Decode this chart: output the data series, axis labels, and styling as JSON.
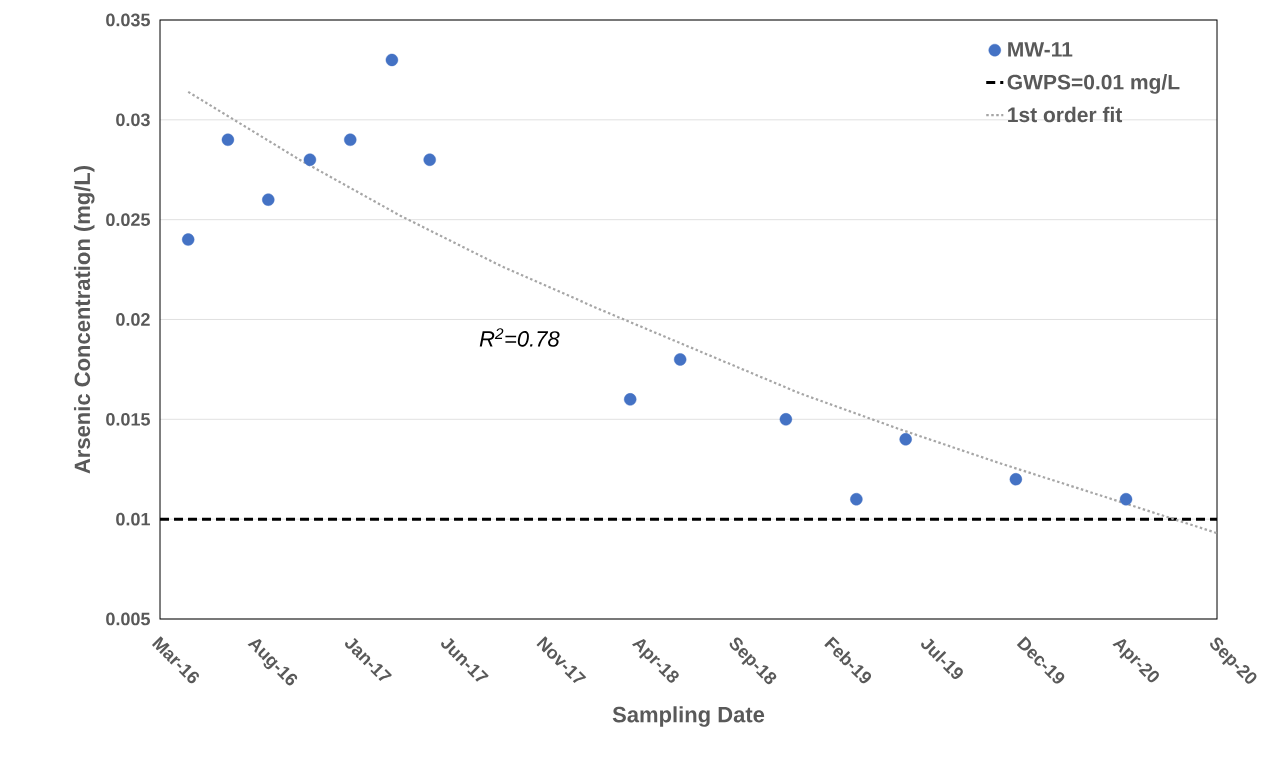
{
  "chart_data": {
    "type": "scatter",
    "xlabel": "Sampling Date",
    "ylabel": "Arsenic Concentration (mg/L)",
    "xlim": [
      "2016-03-21",
      "2020-09-26"
    ],
    "xticks": [
      {
        "value": "2016-03-21",
        "label": "Mar-16"
      },
      {
        "value": "2016-08-18",
        "label": "Aug-16"
      },
      {
        "value": "2017-01-15",
        "label": "Jan-17"
      },
      {
        "value": "2017-06-14",
        "label": "Jun-17"
      },
      {
        "value": "2017-11-11",
        "label": "Nov-17"
      },
      {
        "value": "2018-04-10",
        "label": "Apr-18"
      },
      {
        "value": "2018-09-07",
        "label": "Sep-18"
      },
      {
        "value": "2019-02-04",
        "label": "Feb-19"
      },
      {
        "value": "2019-07-04",
        "label": "Jul-19"
      },
      {
        "value": "2019-12-01",
        "label": "Dec-19"
      },
      {
        "value": "2020-04-29",
        "label": "Apr-20"
      },
      {
        "value": "2020-09-26",
        "label": "Sep-20"
      }
    ],
    "ylim": [
      0.005,
      0.035
    ],
    "yticks": [
      0.005,
      0.01,
      0.015,
      0.02,
      0.025,
      0.03,
      0.035
    ],
    "grid": "y",
    "legend": "top right",
    "marker": "circle",
    "series": [
      {
        "name": "MW-11",
        "color": "#4472c4",
        "x": [
          "2016-05-04",
          "2016-07-05",
          "2016-09-06",
          "2016-11-10",
          "2017-01-12",
          "2017-03-18",
          "2017-05-16",
          "2018-03-25",
          "2018-06-11",
          "2018-11-23",
          "2019-03-13",
          "2019-05-29",
          "2019-11-17",
          "2020-05-07"
        ],
        "values": [
          0.024,
          0.029,
          0.026,
          0.028,
          0.029,
          0.033,
          0.028,
          0.016,
          0.018,
          0.015,
          0.011,
          0.014,
          0.012,
          0.011
        ]
      },
      {
        "type": "line",
        "name": "1st order fit",
        "color": "#a6a6a6",
        "line_style": "dotted",
        "marker": "none",
        "x": [
          "2016-05-04",
          "2016-10-25",
          "2017-03-31",
          "2017-09-03",
          "2018-02-06",
          "2018-07-12",
          "2018-12-15",
          "2019-05-20",
          "2019-10-23",
          "2020-03-27",
          "2020-09-26"
        ],
        "values": [
          0.0314,
          0.028,
          0.0252,
          0.0227,
          0.0205,
          0.0184,
          0.0163,
          0.0145,
          0.0128,
          0.0112,
          0.0093
        ]
      }
    ],
    "ref_lines": [
      {
        "axis": "y",
        "value": 0.01,
        "label": "GWPS=0.01 mg/L",
        "color": "#000000",
        "line_style": "dashed"
      }
    ],
    "annotations": [
      "R$^{2}$=0.78"
    ]
  }
}
